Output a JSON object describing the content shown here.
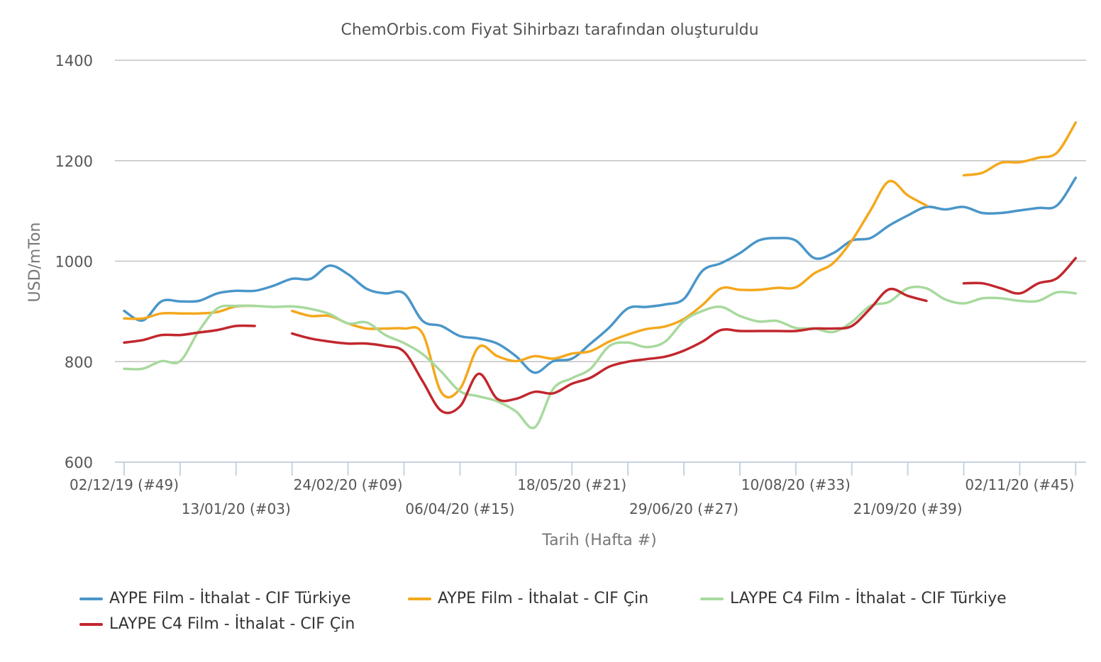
{
  "chart_data": {
    "type": "line",
    "title": "ChemOrbis.com Fiyat Sihirbazı tarafından oluşturuldu",
    "xlabel": "Tarih (Hafta #)",
    "ylabel": "USD/mTon",
    "ylim": [
      600,
      1400
    ],
    "yticks": [
      "600",
      "800",
      "1000",
      "1200",
      "1400"
    ],
    "xrange_weeks": [
      0,
      51.5
    ],
    "grid": "horizontal",
    "legend_position": "bottom",
    "x_tick_labels": [
      {
        "week": 0,
        "label": "02/12/19 (#49)"
      },
      {
        "week": 6,
        "label": "13/01/20 (#03)"
      },
      {
        "week": 12,
        "label": "24/02/20 (#09)"
      },
      {
        "week": 18,
        "label": "06/04/20 (#15)"
      },
      {
        "week": 24,
        "label": "18/05/20 (#21)"
      },
      {
        "week": 30,
        "label": "29/06/20 (#27)"
      },
      {
        "week": 36,
        "label": "10/08/20 (#33)"
      },
      {
        "week": 42,
        "label": "21/09/20 (#39)"
      },
      {
        "week": 48,
        "label": "02/11/20 (#45)"
      }
    ],
    "series": [
      {
        "name": "AYPE Film - İthalat - CIF Türkiye",
        "color": "#4a96c9",
        "points": [
          [
            0,
            901
          ],
          [
            1,
            882
          ],
          [
            2,
            920
          ],
          [
            3,
            920
          ],
          [
            4,
            921
          ],
          [
            5,
            936
          ],
          [
            6,
            941
          ],
          [
            7,
            941
          ],
          [
            8,
            951
          ],
          [
            9,
            965
          ],
          [
            10,
            965
          ],
          [
            11,
            991
          ],
          [
            12,
            974
          ],
          [
            13,
            945
          ],
          [
            14,
            936
          ],
          [
            15,
            936
          ],
          [
            16,
            881
          ],
          [
            17,
            871
          ],
          [
            18,
            851
          ],
          [
            19,
            846
          ],
          [
            20,
            836
          ],
          [
            21,
            811
          ],
          [
            22,
            778
          ],
          [
            23,
            801
          ],
          [
            24,
            806
          ],
          [
            25,
            836
          ],
          [
            26,
            868
          ],
          [
            27,
            906
          ],
          [
            28,
            909
          ],
          [
            29,
            914
          ],
          [
            30,
            925
          ],
          [
            31,
            981
          ],
          [
            32,
            996
          ],
          [
            33,
            1016
          ],
          [
            34,
            1041
          ],
          [
            35,
            1046
          ],
          [
            36,
            1041
          ],
          [
            37,
            1006
          ],
          [
            38,
            1016
          ],
          [
            39,
            1041
          ],
          [
            40,
            1046
          ],
          [
            41,
            1071
          ],
          [
            42,
            1091
          ],
          [
            43,
            1108
          ],
          [
            44,
            1103
          ],
          [
            45,
            1108
          ],
          [
            46,
            1096
          ],
          [
            47,
            1096
          ],
          [
            48,
            1101
          ],
          [
            49,
            1106
          ],
          [
            50,
            1111
          ],
          [
            51,
            1166
          ]
        ]
      },
      {
        "name": "AYPE Film - İthalat - CIF Çin",
        "color": "#f4a81d",
        "points": [
          [
            0,
            886
          ],
          [
            1,
            886
          ],
          [
            2,
            896
          ],
          [
            3,
            896
          ],
          [
            4,
            896
          ],
          [
            5,
            899
          ],
          [
            6,
            910
          ],
          [
            7,
            911
          ],
          [
            null,
            null
          ],
          [
            9,
            901
          ],
          [
            10,
            891
          ],
          [
            11,
            891
          ],
          [
            12,
            876
          ],
          [
            13,
            866
          ],
          [
            14,
            866
          ],
          [
            15,
            866
          ],
          [
            16,
            856
          ],
          [
            17,
            739
          ],
          [
            18,
            746
          ],
          [
            19,
            829
          ],
          [
            20,
            811
          ],
          [
            21,
            801
          ],
          [
            22,
            811
          ],
          [
            23,
            806
          ],
          [
            24,
            816
          ],
          [
            25,
            821
          ],
          [
            26,
            840
          ],
          [
            27,
            854
          ],
          [
            28,
            865
          ],
          [
            29,
            870
          ],
          [
            30,
            885
          ],
          [
            31,
            913
          ],
          [
            32,
            946
          ],
          [
            33,
            943
          ],
          [
            34,
            943
          ],
          [
            35,
            947
          ],
          [
            36,
            948
          ],
          [
            37,
            976
          ],
          [
            38,
            996
          ],
          [
            39,
            1041
          ],
          [
            40,
            1101
          ],
          [
            41,
            1159
          ],
          [
            42,
            1131
          ],
          [
            43,
            1111
          ],
          [
            null,
            null
          ],
          [
            45,
            1171
          ],
          [
            46,
            1176
          ],
          [
            47,
            1196
          ],
          [
            48,
            1197
          ],
          [
            49,
            1206
          ],
          [
            50,
            1216
          ],
          [
            51,
            1276
          ]
        ]
      },
      {
        "name": "LAYPE C4 Film - İthalat - CIF Türkiye",
        "color": "#a8d99e",
        "points": [
          [
            0,
            786
          ],
          [
            1,
            786
          ],
          [
            2,
            801
          ],
          [
            3,
            801
          ],
          [
            4,
            861
          ],
          [
            5,
            906
          ],
          [
            6,
            911
          ],
          [
            7,
            911
          ],
          [
            8,
            909
          ],
          [
            9,
            910
          ],
          [
            10,
            905
          ],
          [
            11,
            895
          ],
          [
            12,
            876
          ],
          [
            13,
            878
          ],
          [
            14,
            853
          ],
          [
            15,
            837
          ],
          [
            16,
            815
          ],
          [
            17,
            780
          ],
          [
            18,
            741
          ],
          [
            19,
            731
          ],
          [
            20,
            721
          ],
          [
            21,
            701
          ],
          [
            22,
            669
          ],
          [
            23,
            746
          ],
          [
            24,
            767
          ],
          [
            25,
            786
          ],
          [
            26,
            831
          ],
          [
            27,
            838
          ],
          [
            28,
            829
          ],
          [
            29,
            840
          ],
          [
            30,
            881
          ],
          [
            31,
            901
          ],
          [
            32,
            909
          ],
          [
            33,
            891
          ],
          [
            34,
            880
          ],
          [
            35,
            881
          ],
          [
            36,
            867
          ],
          [
            37,
            866
          ],
          [
            38,
            859
          ],
          [
            39,
            879
          ],
          [
            40,
            911
          ],
          [
            41,
            919
          ],
          [
            42,
            946
          ],
          [
            43,
            946
          ],
          [
            44,
            924
          ],
          [
            45,
            916
          ],
          [
            46,
            926
          ],
          [
            47,
            926
          ],
          [
            48,
            921
          ],
          [
            49,
            921
          ],
          [
            50,
            938
          ],
          [
            51,
            936
          ]
        ]
      },
      {
        "name": "LAYPE C4 Film - İthalat - CIF Çin",
        "color": "#c1272d",
        "points": [
          [
            0,
            838
          ],
          [
            1,
            843
          ],
          [
            2,
            853
          ],
          [
            3,
            853
          ],
          [
            4,
            858
          ],
          [
            5,
            863
          ],
          [
            6,
            871
          ],
          [
            7,
            871
          ],
          [
            null,
            null
          ],
          [
            9,
            856
          ],
          [
            10,
            846
          ],
          [
            11,
            840
          ],
          [
            12,
            836
          ],
          [
            13,
            836
          ],
          [
            14,
            831
          ],
          [
            15,
            820
          ],
          [
            16,
            761
          ],
          [
            17,
            702
          ],
          [
            18,
            711
          ],
          [
            19,
            776
          ],
          [
            20,
            726
          ],
          [
            21,
            726
          ],
          [
            22,
            740
          ],
          [
            23,
            737
          ],
          [
            24,
            756
          ],
          [
            25,
            768
          ],
          [
            26,
            790
          ],
          [
            27,
            800
          ],
          [
            28,
            805
          ],
          [
            29,
            810
          ],
          [
            30,
            822
          ],
          [
            31,
            840
          ],
          [
            32,
            863
          ],
          [
            33,
            861
          ],
          [
            34,
            861
          ],
          [
            35,
            861
          ],
          [
            36,
            861
          ],
          [
            37,
            866
          ],
          [
            38,
            866
          ],
          [
            39,
            871
          ],
          [
            40,
            906
          ],
          [
            41,
            944
          ],
          [
            42,
            931
          ],
          [
            43,
            921
          ],
          [
            null,
            null
          ],
          [
            45,
            956
          ],
          [
            46,
            956
          ],
          [
            47,
            946
          ],
          [
            48,
            936
          ],
          [
            49,
            956
          ],
          [
            50,
            966
          ],
          [
            51,
            1006
          ]
        ]
      }
    ]
  }
}
